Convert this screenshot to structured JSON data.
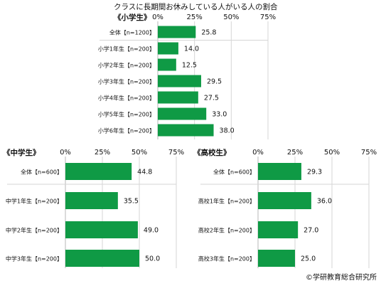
{
  "title": "クラスに長期間お休みしている人がいる人の割合",
  "footer": "©学研教育総合研究所",
  "colors": {
    "bar": "#0f9a45",
    "grid": "#d6d6d6",
    "axis": "#b7b7b7"
  },
  "chart_data": [
    {
      "type": "bar",
      "orientation": "horizontal",
      "title": "《小学生》",
      "categories": [
        "全体【n=1200】",
        "小学1年生【n=200】",
        "小学2年生【n=200】",
        "小学3年生【n=200】",
        "小学4年生【n=200】",
        "小学5年生【n=200】",
        "小学6年生【n=200】"
      ],
      "values": [
        25.8,
        14.0,
        12.5,
        29.5,
        27.5,
        33.0,
        38.0
      ],
      "value_labels": [
        "25.8",
        "14.0",
        "12.5",
        "29.5",
        "27.5",
        "33.0",
        "38.0"
      ],
      "xlim": [
        0,
        75
      ],
      "xticks": [
        "0%",
        "25%",
        "50%",
        "75%"
      ]
    },
    {
      "type": "bar",
      "orientation": "horizontal",
      "title": "《中学生》",
      "categories": [
        "全体【n=600】",
        "中学1年生【n=200】",
        "中学2年生【n=200】",
        "中学3年生【n=200】"
      ],
      "values": [
        44.8,
        35.5,
        49.0,
        50.0
      ],
      "value_labels": [
        "44.8",
        "35.5",
        "49.0",
        "50.0"
      ],
      "xlim": [
        0,
        75
      ],
      "xticks": [
        "0%",
        "25%",
        "50%",
        "75%"
      ]
    },
    {
      "type": "bar",
      "orientation": "horizontal",
      "title": "《高校生》",
      "categories": [
        "全体【n=600】",
        "高校1年生【n=200】",
        "高校2年生【n=200】",
        "高校3年生【n=200】"
      ],
      "values": [
        29.3,
        36.0,
        27.0,
        25.0
      ],
      "value_labels": [
        "29.3",
        "36.0",
        "27.0",
        "25.0"
      ],
      "xlim": [
        0,
        75
      ],
      "xticks": [
        "0%",
        "25%",
        "50%",
        "75%"
      ]
    }
  ]
}
